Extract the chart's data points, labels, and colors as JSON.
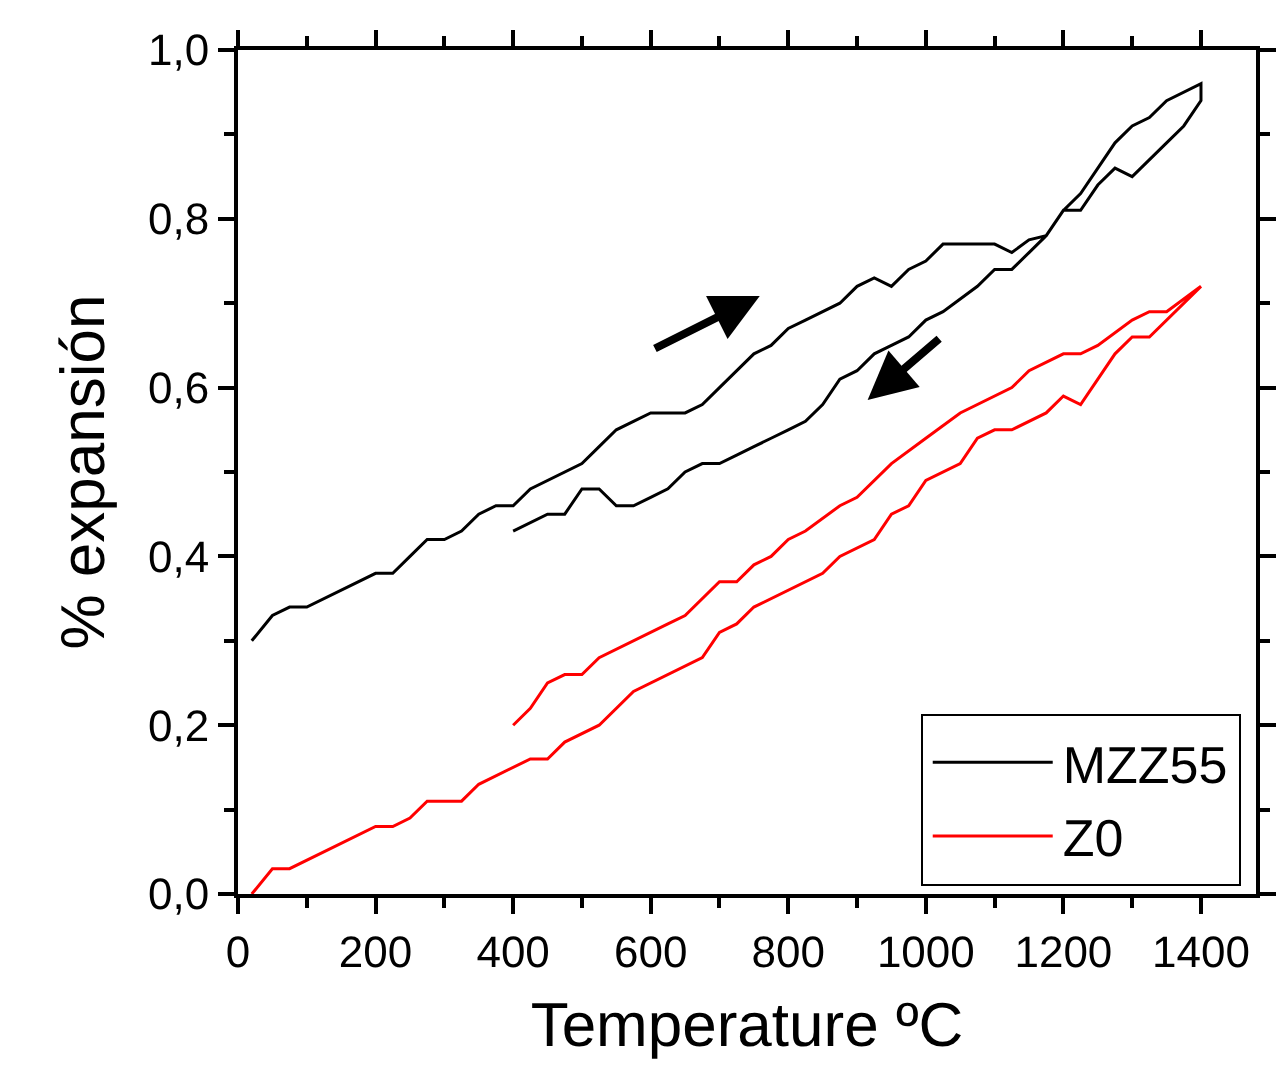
{
  "chart_data": {
    "type": "line",
    "xlabel": "Temperature ºC",
    "ylabel": "% expansión",
    "xlim": [
      0,
      1480
    ],
    "ylim": [
      0,
      1.0
    ],
    "xticks": [
      0,
      200,
      400,
      600,
      800,
      1000,
      1200,
      1400
    ],
    "yticks": [
      {
        "value": 0,
        "label": "0,0"
      },
      {
        "value": 0.2,
        "label": "0,2"
      },
      {
        "value": 0.4,
        "label": "0,4"
      },
      {
        "value": 0.6,
        "label": "0,6"
      },
      {
        "value": 0.8,
        "label": "0,8"
      },
      {
        "value": 1.0,
        "label": "1,0"
      }
    ],
    "legend": "bottom right",
    "marker": "none",
    "line_style": "solid",
    "series": [
      {
        "name": "MZZ55",
        "color": "#000000",
        "x": [
          20,
          50,
          75,
          100,
          200,
          225,
          250,
          275,
          300,
          325,
          350,
          375,
          400,
          425,
          500,
          525,
          550,
          575,
          600,
          650,
          675,
          700,
          750,
          775,
          800,
          825,
          875,
          900,
          925,
          950,
          975,
          1000,
          1025,
          1100,
          1125,
          1150,
          1175,
          1200,
          1225,
          1275,
          1300,
          1325,
          1350,
          1400,
          1400,
          1375,
          1350,
          1300,
          1275,
          1250,
          1225,
          1200,
          1175,
          1150,
          1125,
          1100,
          1075,
          1025,
          1000,
          975,
          950,
          925,
          900,
          875,
          850,
          825,
          800,
          775,
          750,
          725,
          700,
          675,
          650,
          625,
          600,
          575,
          550,
          525,
          500,
          475,
          450,
          400
        ],
        "values": [
          0.3,
          0.33,
          0.34,
          0.34,
          0.38,
          0.38,
          0.4,
          0.42,
          0.42,
          0.43,
          0.45,
          0.46,
          0.46,
          0.48,
          0.51,
          0.53,
          0.55,
          0.56,
          0.57,
          0.57,
          0.58,
          0.6,
          0.64,
          0.65,
          0.67,
          0.68,
          0.7,
          0.72,
          0.73,
          0.72,
          0.74,
          0.75,
          0.77,
          0.77,
          0.76,
          0.775,
          0.78,
          0.81,
          0.83,
          0.89,
          0.91,
          0.92,
          0.94,
          0.96,
          0.94,
          0.91,
          0.89,
          0.85,
          0.86,
          0.84,
          0.81,
          0.81,
          0.78,
          0.76,
          0.74,
          0.74,
          0.72,
          0.69,
          0.68,
          0.66,
          0.65,
          0.64,
          0.62,
          0.61,
          0.58,
          0.56,
          0.55,
          0.54,
          0.53,
          0.52,
          0.51,
          0.51,
          0.5,
          0.48,
          0.47,
          0.46,
          0.46,
          0.48,
          0.48,
          0.45,
          0.45,
          0.43
        ]
      },
      {
        "name": "Z0",
        "color": "#ff0000",
        "x": [
          20,
          50,
          75,
          200,
          225,
          250,
          275,
          325,
          350,
          425,
          450,
          475,
          525,
          575,
          675,
          700,
          725,
          750,
          850,
          875,
          925,
          950,
          975,
          1000,
          1050,
          1075,
          1100,
          1125,
          1175,
          1200,
          1225,
          1275,
          1300,
          1325,
          1400,
          1350,
          1325,
          1300,
          1250,
          1225,
          1200,
          1150,
          1125,
          1050,
          1000,
          950,
          900,
          875,
          825,
          800,
          775,
          750,
          725,
          700,
          650,
          625,
          525,
          500,
          475,
          450,
          425,
          400
        ],
        "values": [
          0,
          0.03,
          0.03,
          0.08,
          0.08,
          0.09,
          0.11,
          0.11,
          0.13,
          0.16,
          0.16,
          0.18,
          0.2,
          0.24,
          0.28,
          0.31,
          0.32,
          0.34,
          0.38,
          0.4,
          0.42,
          0.45,
          0.46,
          0.49,
          0.51,
          0.54,
          0.55,
          0.55,
          0.57,
          0.59,
          0.58,
          0.64,
          0.66,
          0.66,
          0.72,
          0.69,
          0.69,
          0.68,
          0.65,
          0.64,
          0.64,
          0.62,
          0.6,
          0.57,
          0.54,
          0.51,
          0.47,
          0.46,
          0.43,
          0.42,
          0.4,
          0.39,
          0.37,
          0.37,
          0.33,
          0.32,
          0.28,
          0.26,
          0.26,
          0.25,
          0.22,
          0.2
        ]
      }
    ]
  }
}
